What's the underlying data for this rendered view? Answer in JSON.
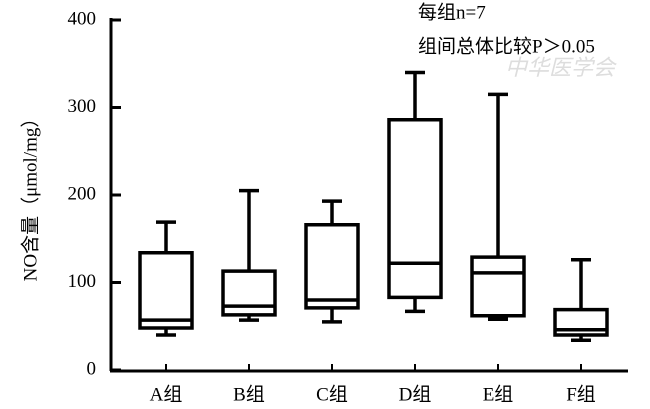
{
  "chart_data": {
    "type": "box",
    "y_label": "NO含量（μmol/mg）",
    "annotations": [
      "每组n=7",
      "组间总体比较P＞0.05"
    ],
    "watermark": "中华医学会",
    "categories": [
      "A组",
      "B组",
      "C组",
      "D组",
      "E组",
      "F组"
    ],
    "boxes": [
      {
        "min": 40,
        "q1": 48,
        "median": 57,
        "q3": 134,
        "max": 169
      },
      {
        "min": 57,
        "q1": 63,
        "median": 73,
        "q3": 113,
        "max": 205
      },
      {
        "min": 55,
        "q1": 71,
        "median": 80,
        "q3": 166,
        "max": 193
      },
      {
        "min": 67,
        "q1": 83,
        "median": 122,
        "q3": 286,
        "max": 340
      },
      {
        "min": 58,
        "q1": 62,
        "median": 111,
        "q3": 129,
        "max": 315
      },
      {
        "min": 34,
        "q1": 40,
        "median": 46,
        "q3": 69,
        "max": 126
      }
    ],
    "color": "#000000",
    "ylim": [
      0,
      400
    ],
    "yticks": [
      0,
      100,
      200,
      300,
      400
    ]
  }
}
